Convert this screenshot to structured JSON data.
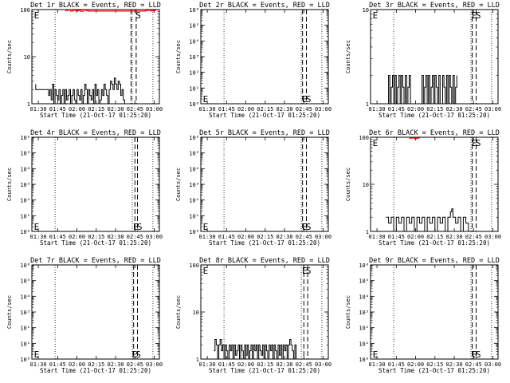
{
  "page": {
    "background": "#ffffff"
  },
  "chart_data": [
    {
      "type": "line",
      "title": "Det 1r BLACK = Events, RED = LLD",
      "xlabel": "Start Time (21-Oct-17 01:25:20)",
      "ylabel": "Counts/sec",
      "xticks": [
        "01:30",
        "01:45",
        "02:00",
        "02:15",
        "02:30",
        "02:45",
        "03:00"
      ],
      "ytick_labels": [
        {
          "value": 1,
          "label": "1"
        },
        {
          "value": 10,
          "label": "10"
        },
        {
          "value": 100,
          "label": "100"
        }
      ],
      "ylim": [
        1,
        100
      ],
      "yscale": "log",
      "xlim_minutes": [
        0,
        99
      ],
      "annotations": [
        {
          "label": "E",
          "x": 1,
          "y": "top"
        },
        {
          "label": "S",
          "x": 80,
          "y": "top"
        }
      ],
      "dotted_vlines": [
        18,
        78,
        94
      ],
      "dashed_vlines": [
        77,
        81
      ],
      "series": [
        {
          "color": "#000000",
          "x": [
            3,
            3,
            12,
            13,
            14,
            15,
            16,
            17,
            18,
            19,
            20,
            21,
            22,
            23,
            24,
            25,
            26,
            27,
            28,
            29,
            30,
            31,
            32,
            33,
            34,
            35,
            36,
            37,
            38,
            39,
            40,
            41,
            42,
            43,
            44,
            45,
            46,
            47,
            48,
            49,
            50,
            51,
            52,
            53,
            54,
            55,
            56,
            57,
            58,
            59,
            60,
            61,
            62,
            63,
            64,
            65,
            66,
            67,
            68,
            69,
            70,
            71,
            72,
            73
          ],
          "y": [
            2.6,
            2,
            2,
            1.5,
            2,
            1.2,
            2.6,
            1,
            2,
            1.5,
            1.2,
            2,
            1,
            1.5,
            2,
            1,
            2,
            1.2,
            1.5,
            2,
            1,
            1.5,
            2,
            1.2,
            1,
            2,
            1.5,
            1.2,
            2,
            1,
            1.5,
            2.6,
            2,
            1,
            2,
            1.5,
            1.2,
            2,
            1,
            2.6,
            1.5,
            2,
            1,
            1.2,
            2,
            1.5,
            2.6,
            2,
            1.5,
            1,
            2,
            3,
            2.6,
            2,
            3.5,
            2.6,
            2,
            3,
            2.6,
            1.5,
            2,
            1.2,
            1,
            1
          ]
        },
        {
          "color": "#ff0000",
          "x": [
            26,
            28,
            30,
            32,
            34,
            36,
            38,
            40,
            42,
            44,
            88,
            90,
            92,
            94,
            96
          ],
          "y": [
            95,
            98,
            93,
            97,
            94,
            96,
            92,
            98,
            95,
            93,
            95,
            97,
            94,
            96,
            93
          ]
        }
      ]
    },
    {
      "type": "line",
      "title": "Det 2r BLACK = Events, RED = LLD",
      "xlabel": "Start Time (21-Oct-17 01:25:20)",
      "ylabel": "Counts/sec",
      "xticks": [
        "01:30",
        "01:45",
        "02:00",
        "02:15",
        "02:30",
        "02:45",
        "03:00"
      ],
      "ytick_labels": [
        {
          "value": 1,
          "label": "10⁰"
        },
        {
          "value": 10,
          "label": "10¹"
        },
        {
          "value": 100,
          "label": "10²"
        },
        {
          "value": 1000,
          "label": "10³"
        },
        {
          "value": 10000,
          "label": "10⁴"
        },
        {
          "value": 100000,
          "label": "10⁵"
        },
        {
          "value": 1000000,
          "label": "10⁶"
        }
      ],
      "ylim": [
        1,
        1000000
      ],
      "yscale": "log",
      "xlim_minutes": [
        0,
        99
      ],
      "annotations": [
        {
          "label": "E",
          "x": 1,
          "y": "bottom"
        },
        {
          "label": "E",
          "x": 78,
          "y": "bottom"
        },
        {
          "label": "S",
          "x": 81,
          "y": "bottom"
        }
      ],
      "dotted_vlines": [
        18,
        78,
        94
      ],
      "dashed_vlines": [
        79,
        82
      ],
      "series": []
    },
    {
      "type": "line",
      "title": "Det 3r BLACK = Events, RED = LLD",
      "xlabel": "Start Time (21-Oct-17 01:25:20)",
      "ylabel": "Counts/sec",
      "xticks": [
        "01:30",
        "01:45",
        "02:00",
        "02:15",
        "02:30",
        "02:45",
        "03:00"
      ],
      "ytick_labels": [
        {
          "value": 1,
          "label": "1"
        },
        {
          "value": 10,
          "label": "10"
        }
      ],
      "ylim": [
        1,
        10
      ],
      "yscale": "log",
      "xlim_minutes": [
        0,
        99
      ],
      "annotations": [
        {
          "label": "E",
          "x": 1,
          "y": "top"
        },
        {
          "label": "E",
          "x": 78,
          "y": "top"
        },
        {
          "label": "S",
          "x": 81,
          "y": "top"
        }
      ],
      "dotted_vlines": [
        18,
        78,
        94
      ],
      "dashed_vlines": [
        79,
        82
      ],
      "series": [
        {
          "color": "#000000",
          "x": [
            13,
            14,
            15,
            16,
            17,
            18,
            19,
            20,
            21,
            22,
            23,
            24,
            25,
            26,
            27,
            28,
            29,
            30,
            31,
            32,
            40,
            41,
            42,
            43,
            44,
            45,
            46,
            47,
            48,
            49,
            50,
            51,
            52,
            53,
            54,
            55,
            56,
            57,
            58,
            59,
            60,
            61,
            62,
            63,
            64,
            65,
            66,
            67
          ],
          "y": [
            1,
            2,
            1,
            1.5,
            2,
            1,
            2,
            1,
            1.5,
            2,
            1,
            2,
            1.5,
            1,
            2,
            1,
            1.5,
            2,
            1,
            1,
            2,
            1,
            1.5,
            2,
            1,
            2,
            1,
            1.5,
            2,
            1,
            2,
            1.5,
            1,
            2,
            1,
            1,
            2,
            1.5,
            1,
            2,
            1,
            2,
            1.5,
            1,
            2,
            1,
            1.5,
            2
          ]
        }
      ]
    },
    {
      "type": "line",
      "title": "Det 4r BLACK = Events, RED = LLD",
      "xlabel": "Start Time (21-Oct-17 01:25:20)",
      "ylabel": "Counts/sec",
      "xticks": [
        "01:30",
        "01:45",
        "02:00",
        "02:15",
        "02:30",
        "02:45",
        "03:00"
      ],
      "ytick_labels": [
        {
          "value": 1,
          "label": "10⁰"
        },
        {
          "value": 10,
          "label": "10¹"
        },
        {
          "value": 100,
          "label": "10²"
        },
        {
          "value": 1000,
          "label": "10³"
        },
        {
          "value": 10000,
          "label": "10⁴"
        },
        {
          "value": 100000,
          "label": "10⁵"
        },
        {
          "value": 1000000,
          "label": "10⁶"
        }
      ],
      "ylim": [
        1,
        1000000
      ],
      "yscale": "log",
      "xlim_minutes": [
        0,
        99
      ],
      "annotations": [
        {
          "label": "E",
          "x": 1,
          "y": "bottom"
        },
        {
          "label": "E",
          "x": 78,
          "y": "bottom"
        },
        {
          "label": "S",
          "x": 81,
          "y": "bottom"
        }
      ],
      "dotted_vlines": [
        18,
        78,
        94
      ],
      "dashed_vlines": [
        80,
        82
      ],
      "series": []
    },
    {
      "type": "line",
      "title": "Det 5r BLACK = Events, RED = LLD",
      "xlabel": "Start Time (21-Oct-17 01:25:20)",
      "ylabel": "Counts/sec",
      "xticks": [
        "01:30",
        "01:45",
        "02:00",
        "02:15",
        "02:30",
        "02:45",
        "03:00"
      ],
      "ytick_labels": [
        {
          "value": 1,
          "label": "10⁰"
        },
        {
          "value": 10,
          "label": "10¹"
        },
        {
          "value": 100,
          "label": "10²"
        },
        {
          "value": 1000,
          "label": "10³"
        },
        {
          "value": 10000,
          "label": "10⁴"
        },
        {
          "value": 100000,
          "label": "10⁵"
        },
        {
          "value": 1000000,
          "label": "10⁶"
        }
      ],
      "ylim": [
        1,
        1000000
      ],
      "yscale": "log",
      "xlim_minutes": [
        0,
        99
      ],
      "annotations": [
        {
          "label": "E",
          "x": 1,
          "y": "bottom"
        },
        {
          "label": "E",
          "x": 78,
          "y": "bottom"
        },
        {
          "label": "S",
          "x": 81,
          "y": "bottom"
        }
      ],
      "dotted_vlines": [
        18,
        78,
        94
      ],
      "dashed_vlines": [
        79,
        82
      ],
      "series": []
    },
    {
      "type": "line",
      "title": "Det 6r BLACK = Events, RED = LLD",
      "xlabel": "Start Time (21-Oct-17 01:25:20)",
      "ylabel": "Counts/sec",
      "xticks": [
        "01:30",
        "01:45",
        "02:00",
        "02:15",
        "02:30",
        "02:45",
        "03:00"
      ],
      "ytick_labels": [
        {
          "value": 1,
          "label": "1"
        },
        {
          "value": 10,
          "label": "10"
        },
        {
          "value": 100,
          "label": "100"
        }
      ],
      "ylim": [
        1,
        100
      ],
      "yscale": "log",
      "xlim_minutes": [
        0,
        99
      ],
      "annotations": [
        {
          "label": "E",
          "x": 1,
          "y": "top"
        },
        {
          "label": "E",
          "x": 78,
          "y": "top"
        },
        {
          "label": "S",
          "x": 81,
          "y": "top"
        }
      ],
      "dotted_vlines": [
        18,
        78,
        94
      ],
      "dashed_vlines": [
        79,
        82
      ],
      "series": [
        {
          "color": "#000000",
          "x": [
            12,
            14,
            16,
            18,
            20,
            22,
            24,
            26,
            28,
            30,
            32,
            34,
            36,
            38,
            40,
            42,
            44,
            46,
            48,
            50,
            52,
            54,
            56,
            58,
            60,
            62,
            63,
            64,
            66,
            68,
            70,
            72,
            74,
            76
          ],
          "y": [
            2,
            1.5,
            2,
            1,
            2,
            1.5,
            2,
            1,
            2,
            1.5,
            2,
            1,
            2,
            1.5,
            2,
            1,
            2,
            1.5,
            2,
            1,
            2,
            1.5,
            2,
            1,
            2,
            2.6,
            3,
            2,
            1.5,
            2,
            1,
            2,
            1.5,
            1
          ]
        },
        {
          "color": "#ff0000",
          "x": [
            30,
            32,
            34,
            36,
            38
          ],
          "y": [
            95,
            97,
            94,
            96,
            95
          ]
        }
      ]
    },
    {
      "type": "line",
      "title": "Det 7r BLACK = Events, RED = LLD",
      "xlabel": "Start Time (21-Oct-17 01:25:20)",
      "ylabel": "Counts/sec",
      "xticks": [
        "01:30",
        "01:45",
        "02:00",
        "02:15",
        "02:30",
        "02:45",
        "03:00"
      ],
      "ytick_labels": [
        {
          "value": 1,
          "label": "10⁰"
        },
        {
          "value": 10,
          "label": "10¹"
        },
        {
          "value": 100,
          "label": "10²"
        },
        {
          "value": 1000,
          "label": "10³"
        },
        {
          "value": 10000,
          "label": "10⁴"
        },
        {
          "value": 100000,
          "label": "10⁵"
        },
        {
          "value": 1000000,
          "label": "10⁶"
        }
      ],
      "ylim": [
        1,
        1000000
      ],
      "yscale": "log",
      "xlim_minutes": [
        0,
        99
      ],
      "annotations": [
        {
          "label": "E",
          "x": 1,
          "y": "bottom"
        },
        {
          "label": "E",
          "x": 77,
          "y": "bottom"
        },
        {
          "label": "S",
          "x": 80,
          "y": "bottom"
        }
      ],
      "dotted_vlines": [
        18,
        78,
        94
      ],
      "dashed_vlines": [
        79,
        82
      ],
      "series": []
    },
    {
      "type": "line",
      "title": "Det 8r BLACK = Events, RED = LLD",
      "xlabel": "Start Time (21-Oct-17 01:25:20)",
      "ylabel": "Counts/sec",
      "xticks": [
        "01:30",
        "01:45",
        "02:00",
        "02:15",
        "02:30",
        "02:45",
        "03:00"
      ],
      "ytick_labels": [
        {
          "value": 1,
          "label": "1"
        },
        {
          "value": 10,
          "label": "10"
        },
        {
          "value": 100,
          "label": "100"
        }
      ],
      "ylim": [
        1,
        100
      ],
      "yscale": "log",
      "xlim_minutes": [
        0,
        99
      ],
      "annotations": [
        {
          "label": "E",
          "x": 1,
          "y": "top"
        },
        {
          "label": "E",
          "x": 78,
          "y": "top"
        },
        {
          "label": "S",
          "x": 81,
          "y": "top"
        }
      ],
      "dotted_vlines": [
        18,
        78,
        94
      ],
      "dashed_vlines": [
        80,
        83
      ],
      "series": [
        {
          "color": "#000000",
          "x": [
            10,
            11,
            12,
            13,
            14,
            15,
            16,
            17,
            18,
            19,
            20,
            21,
            22,
            23,
            24,
            25,
            26,
            27,
            28,
            29,
            30,
            31,
            32,
            33,
            34,
            35,
            36,
            37,
            38,
            39,
            40,
            41,
            42,
            43,
            44,
            45,
            46,
            47,
            48,
            49,
            50,
            51,
            52,
            53,
            54,
            55,
            56,
            57,
            58,
            59,
            60,
            61,
            62,
            63,
            64,
            65,
            66,
            67,
            68,
            69,
            70,
            71,
            72,
            73,
            74,
            75
          ],
          "y": [
            1.5,
            2.6,
            2,
            1,
            2,
            2.6,
            1.5,
            2,
            1,
            2,
            1.5,
            1,
            2,
            1.5,
            2,
            1,
            2,
            1.2,
            1.5,
            2,
            1,
            2,
            1.5,
            1,
            2,
            1.2,
            2,
            1,
            1.5,
            2,
            1,
            2,
            1.5,
            2,
            1,
            2,
            1.5,
            1.2,
            2,
            1,
            2,
            1.5,
            1,
            2,
            1.5,
            2,
            1,
            2,
            1.5,
            1,
            2,
            1.2,
            2,
            1,
            2,
            1.5,
            2,
            1,
            2,
            2.6,
            2,
            1.5,
            1,
            2,
            1,
            1
          ]
        }
      ]
    },
    {
      "type": "line",
      "title": "Det 9r BLACK = Events, RED = LLD",
      "xlabel": "Start Time (21-Oct-17 01:25:20)",
      "ylabel": "Counts/sec",
      "xticks": [
        "01:30",
        "01:45",
        "02:00",
        "02:15",
        "02:30",
        "02:45",
        "03:00"
      ],
      "ytick_labels": [
        {
          "value": 1,
          "label": "10⁰"
        },
        {
          "value": 10,
          "label": "10¹"
        },
        {
          "value": 100,
          "label": "10²"
        },
        {
          "value": 1000,
          "label": "10³"
        },
        {
          "value": 10000,
          "label": "10⁴"
        },
        {
          "value": 100000,
          "label": "10⁵"
        },
        {
          "value": 1000000,
          "label": "10⁶"
        }
      ],
      "ylim": [
        1,
        1000000
      ],
      "yscale": "log",
      "xlim_minutes": [
        0,
        99
      ],
      "annotations": [
        {
          "label": "E",
          "x": 1,
          "y": "bottom"
        },
        {
          "label": "E",
          "x": 78,
          "y": "bottom"
        },
        {
          "label": "S",
          "x": 81,
          "y": "bottom"
        }
      ],
      "dotted_vlines": [
        18,
        78,
        94
      ],
      "dashed_vlines": [
        79,
        82
      ],
      "series": []
    }
  ]
}
